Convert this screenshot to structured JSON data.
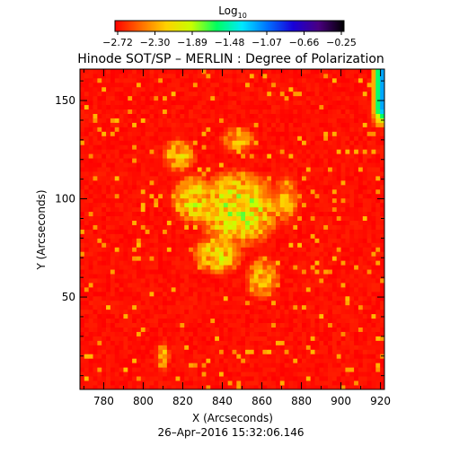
{
  "chart_data": {
    "type": "heatmap",
    "title": "Hinode SOT/SP – MERLIN : Degree of Polarization",
    "xlabel": "X (Arcseconds)",
    "ylabel": "Y (Arcseconds)",
    "xlim": [
      768,
      922
    ],
    "ylim": [
      3,
      166
    ],
    "xticks": [
      780,
      800,
      820,
      840,
      860,
      880,
      900,
      920
    ],
    "yticks": [
      50,
      100,
      150
    ],
    "colorbar": {
      "title_base": "Log",
      "title_sub": "10",
      "min": -2.72,
      "max": -0.25,
      "ticks": [
        "−2.72",
        "−2.30",
        "−1.89",
        "−1.48",
        "−1.07",
        "−0.66",
        "−0.25"
      ],
      "colors": [
        "#ff0000",
        "#ff6a00",
        "#ffd000",
        "#c8ff00",
        "#00ff60",
        "#00e8ff",
        "#0070ff",
        "#1800d8",
        "#4a0080",
        "#000000"
      ]
    },
    "timestamp": "26–Apr–2016  15:32:06.146",
    "regions": [
      {
        "x": 848,
        "y": 95,
        "rx": 24,
        "ry": 22,
        "peak": -1.6
      },
      {
        "x": 825,
        "y": 100,
        "rx": 12,
        "ry": 14,
        "peak": -1.75
      },
      {
        "x": 838,
        "y": 72,
        "rx": 14,
        "ry": 12,
        "peak": -1.8
      },
      {
        "x": 818,
        "y": 122,
        "rx": 10,
        "ry": 10,
        "peak": -2.0
      },
      {
        "x": 860,
        "y": 60,
        "rx": 10,
        "ry": 12,
        "peak": -2.0
      },
      {
        "x": 872,
        "y": 100,
        "rx": 8,
        "ry": 14,
        "peak": -2.05
      },
      {
        "x": 848,
        "y": 130,
        "rx": 10,
        "ry": 8,
        "peak": -2.1
      },
      {
        "x": 810,
        "y": 20,
        "rx": 4,
        "ry": 8,
        "peak": -2.0
      }
    ],
    "edge_region": {
      "x_from": 915,
      "y_from": 135,
      "value": -1.2
    }
  }
}
